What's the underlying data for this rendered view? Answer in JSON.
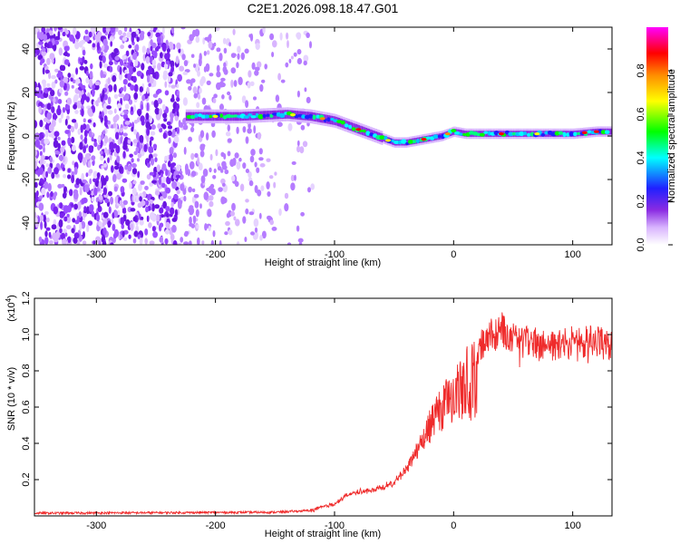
{
  "title": "C2E1.2026.098.18.47.G01",
  "chart_data": [
    {
      "type": "heatmap",
      "name": "spectrogram",
      "xlabel": "Height of straight line (km)",
      "ylabel": "Frequency (Hz)",
      "xlim": [
        -352,
        133
      ],
      "ylim": [
        -50,
        50
      ],
      "xticks": [
        -300,
        -200,
        -100,
        0,
        100
      ],
      "yticks": [
        -40,
        -20,
        0,
        20,
        40
      ],
      "colorbar": {
        "label": "Normalized spectral amplitude",
        "range": [
          0,
          1
        ],
        "ticks": [
          0.0,
          0.2,
          0.4,
          0.6,
          0.8
        ],
        "tick_labels": [
          "0.0",
          "0.2",
          "0.4",
          "0.6",
          "0.8"
        ],
        "colormap": [
          "#ffffff",
          "#d8b4fe",
          "#8a2be2",
          "#2020ff",
          "#00ffff",
          "#00ff00",
          "#ffff00",
          "#ff8c00",
          "#ff0000",
          "#ff00ff"
        ]
      },
      "ridge": {
        "x": [
          -220,
          -200,
          -180,
          -160,
          -140,
          -120,
          -100,
          -90,
          -80,
          -70,
          -60,
          -50,
          -40,
          -30,
          -20,
          -10,
          0,
          10,
          20,
          40,
          60,
          80,
          100,
          120,
          133
        ],
        "y": [
          9,
          9,
          9,
          9.5,
          10,
          9,
          7,
          5,
          3,
          1,
          -1,
          -3,
          -3,
          -2,
          -1,
          0,
          2,
          1,
          1,
          1,
          1,
          1,
          1,
          2,
          2
        ]
      }
    },
    {
      "type": "line",
      "name": "snr",
      "xlabel": "Height of straight line (km)",
      "ylabel": "SNR (10 * v/v)",
      "y_multiplier": "(x10",
      "y_multiplier_exp": "4",
      "y_multiplier_close": ")",
      "xlim": [
        -352,
        133
      ],
      "ylim": [
        0,
        1.2
      ],
      "xticks": [
        -300,
        -200,
        -100,
        0,
        100
      ],
      "yticks": [
        0.2,
        0.4,
        0.6,
        0.8,
        1.0,
        1.2
      ],
      "ytick_labels": [
        "0.2",
        "0.4",
        "0.6",
        "0.8",
        "1.0",
        "1.2"
      ],
      "color": "#ef2b2b",
      "envelope": {
        "x": [
          -352,
          -150,
          -120,
          -100,
          -90,
          -80,
          -70,
          -60,
          -50,
          -40,
          -30,
          -20,
          -10,
          0,
          10,
          20,
          30,
          40,
          60,
          80,
          100,
          120,
          133
        ],
        "y": [
          0.015,
          0.02,
          0.03,
          0.07,
          0.12,
          0.14,
          0.15,
          0.17,
          0.2,
          0.28,
          0.42,
          0.58,
          0.72,
          0.82,
          0.92,
          1.0,
          1.08,
          1.12,
          1.05,
          1.02,
          1.04,
          1.05,
          1.03
        ]
      }
    }
  ]
}
